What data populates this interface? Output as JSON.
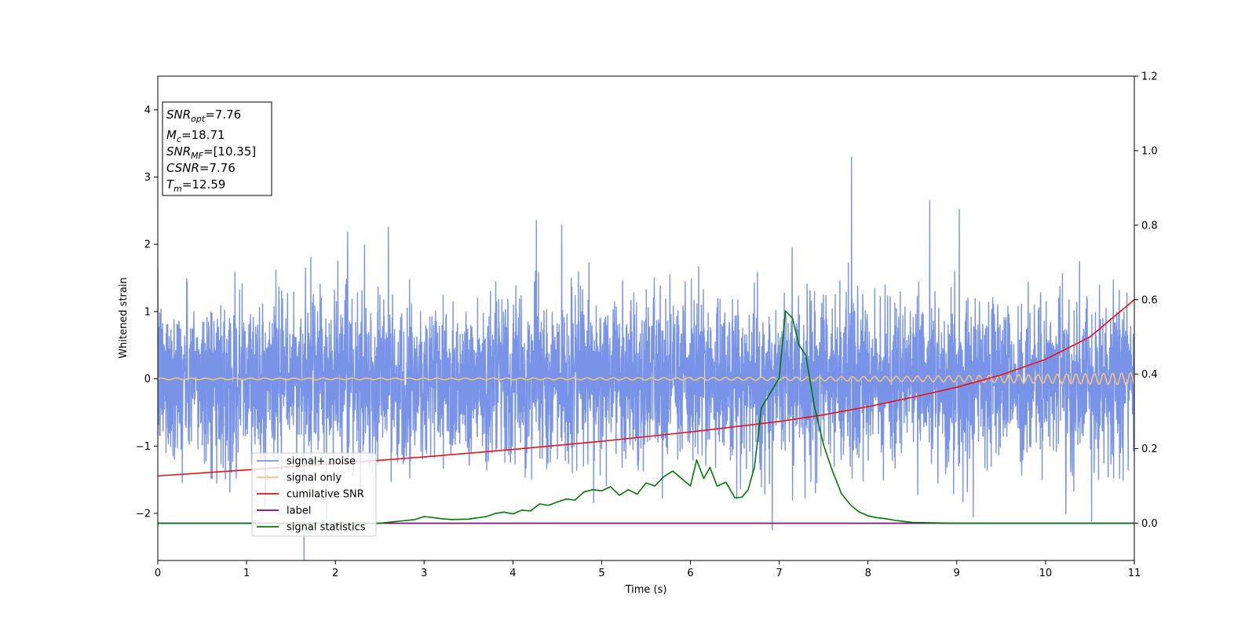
{
  "chart_data": {
    "type": "line",
    "title": "",
    "xlabel": "Time (s)",
    "ylabel": "Whitened strain",
    "xlim": [
      0,
      11
    ],
    "ylim": [
      -2.7,
      4.5
    ],
    "y2lim": [
      -0.1,
      1.2
    ],
    "xticks": [
      0,
      1,
      2,
      3,
      4,
      5,
      6,
      7,
      8,
      9,
      10,
      11
    ],
    "yticks": [
      -2,
      -1,
      0,
      1,
      2,
      3,
      4
    ],
    "y2ticks": [
      0.0,
      0.2,
      0.4,
      0.6,
      0.8,
      1.0,
      1.2
    ],
    "x_tick_labels": [
      "0",
      "1",
      "2",
      "3",
      "4",
      "5",
      "6",
      "7",
      "8",
      "9",
      "10",
      "11"
    ],
    "y_tick_labels": [
      "−2",
      "−1",
      "0",
      "1",
      "2",
      "3",
      "4"
    ],
    "y2_tick_labels": [
      "0.0",
      "0.2",
      "0.4",
      "0.6",
      "0.8",
      "1.0",
      "1.2"
    ],
    "grid": false,
    "legend": {
      "placement": "lower-left",
      "entries": [
        {
          "label": "signal+ noise",
          "color": "#7893e8"
        },
        {
          "label": "signal only",
          "color": "#f5c27a"
        },
        {
          "label": "cumilative SNR",
          "color": "#ee1111"
        },
        {
          "label": "label",
          "color": "#800080"
        },
        {
          "label": "signal statistics",
          "color": "#007a00"
        }
      ]
    },
    "annotation": {
      "lines": [
        {
          "main": "SNR",
          "sub": "opt",
          "rest": "=7.76"
        },
        {
          "main": "M",
          "sub": "c",
          "rest": "=18.71"
        },
        {
          "main": "SNR",
          "sub": "MF",
          "rest": "=[10.35]"
        },
        {
          "main": "CSNR",
          "sub": "",
          "rest": "=7.76"
        },
        {
          "main": "T",
          "sub": "m",
          "rest": "=12.59"
        }
      ]
    },
    "series": [
      {
        "name": "signal+ noise",
        "axis": "left",
        "color": "#7893e8",
        "style": "noise",
        "spread": 0.6,
        "samples_per_second": 420
      },
      {
        "name": "signal only",
        "axis": "left",
        "color": "#f5c27a",
        "style": "chirp",
        "freq_start_hz": 6,
        "freq_end_hz": 10,
        "amp_start": 0.012,
        "amp_end": 0.09
      },
      {
        "name": "cumilative SNR",
        "axis": "right",
        "color": "#ee1111",
        "x": [
          0,
          1,
          2,
          3,
          4,
          5,
          6,
          7,
          7.5,
          8,
          8.5,
          9,
          9.5,
          10,
          10.5,
          11
        ],
        "y": [
          0.127,
          0.143,
          0.16,
          0.178,
          0.198,
          0.22,
          0.245,
          0.273,
          0.291,
          0.313,
          0.338,
          0.365,
          0.398,
          0.44,
          0.5,
          0.6
        ]
      },
      {
        "name": "label",
        "axis": "right",
        "color": "#800080",
        "x": [
          0,
          11
        ],
        "y": [
          0.0,
          0.0
        ]
      },
      {
        "name": "signal statistics",
        "axis": "right",
        "color": "#007a00",
        "x": [
          0,
          0.5,
          1,
          1.5,
          2,
          2.5,
          2.7,
          2.9,
          3.0,
          3.2,
          3.3,
          3.5,
          3.7,
          3.8,
          3.9,
          4.0,
          4.1,
          4.2,
          4.3,
          4.4,
          4.5,
          4.6,
          4.7,
          4.8,
          4.9,
          5.0,
          5.1,
          5.2,
          5.3,
          5.4,
          5.5,
          5.6,
          5.7,
          5.8,
          5.9,
          6.0,
          6.07,
          6.15,
          6.22,
          6.3,
          6.4,
          6.5,
          6.58,
          6.65,
          6.72,
          6.8,
          6.9,
          7.0,
          7.07,
          7.15,
          7.22,
          7.3,
          7.4,
          7.5,
          7.6,
          7.7,
          7.8,
          7.9,
          8.0,
          8.1,
          8.2,
          8.3,
          8.5,
          9.0,
          10.0,
          11.0
        ],
        "y": [
          0.0,
          0.0,
          0.0,
          0.0,
          0.0,
          0.0,
          0.005,
          0.01,
          0.018,
          0.012,
          0.01,
          0.011,
          0.018,
          0.026,
          0.03,
          0.025,
          0.035,
          0.033,
          0.052,
          0.048,
          0.057,
          0.065,
          0.062,
          0.084,
          0.09,
          0.087,
          0.098,
          0.075,
          0.09,
          0.078,
          0.108,
          0.1,
          0.125,
          0.14,
          0.12,
          0.1,
          0.17,
          0.12,
          0.15,
          0.1,
          0.11,
          0.068,
          0.07,
          0.09,
          0.15,
          0.31,
          0.35,
          0.39,
          0.57,
          0.55,
          0.48,
          0.45,
          0.31,
          0.21,
          0.14,
          0.08,
          0.05,
          0.03,
          0.02,
          0.015,
          0.012,
          0.008,
          0.002,
          0.0,
          0.0,
          0.0
        ]
      }
    ]
  }
}
